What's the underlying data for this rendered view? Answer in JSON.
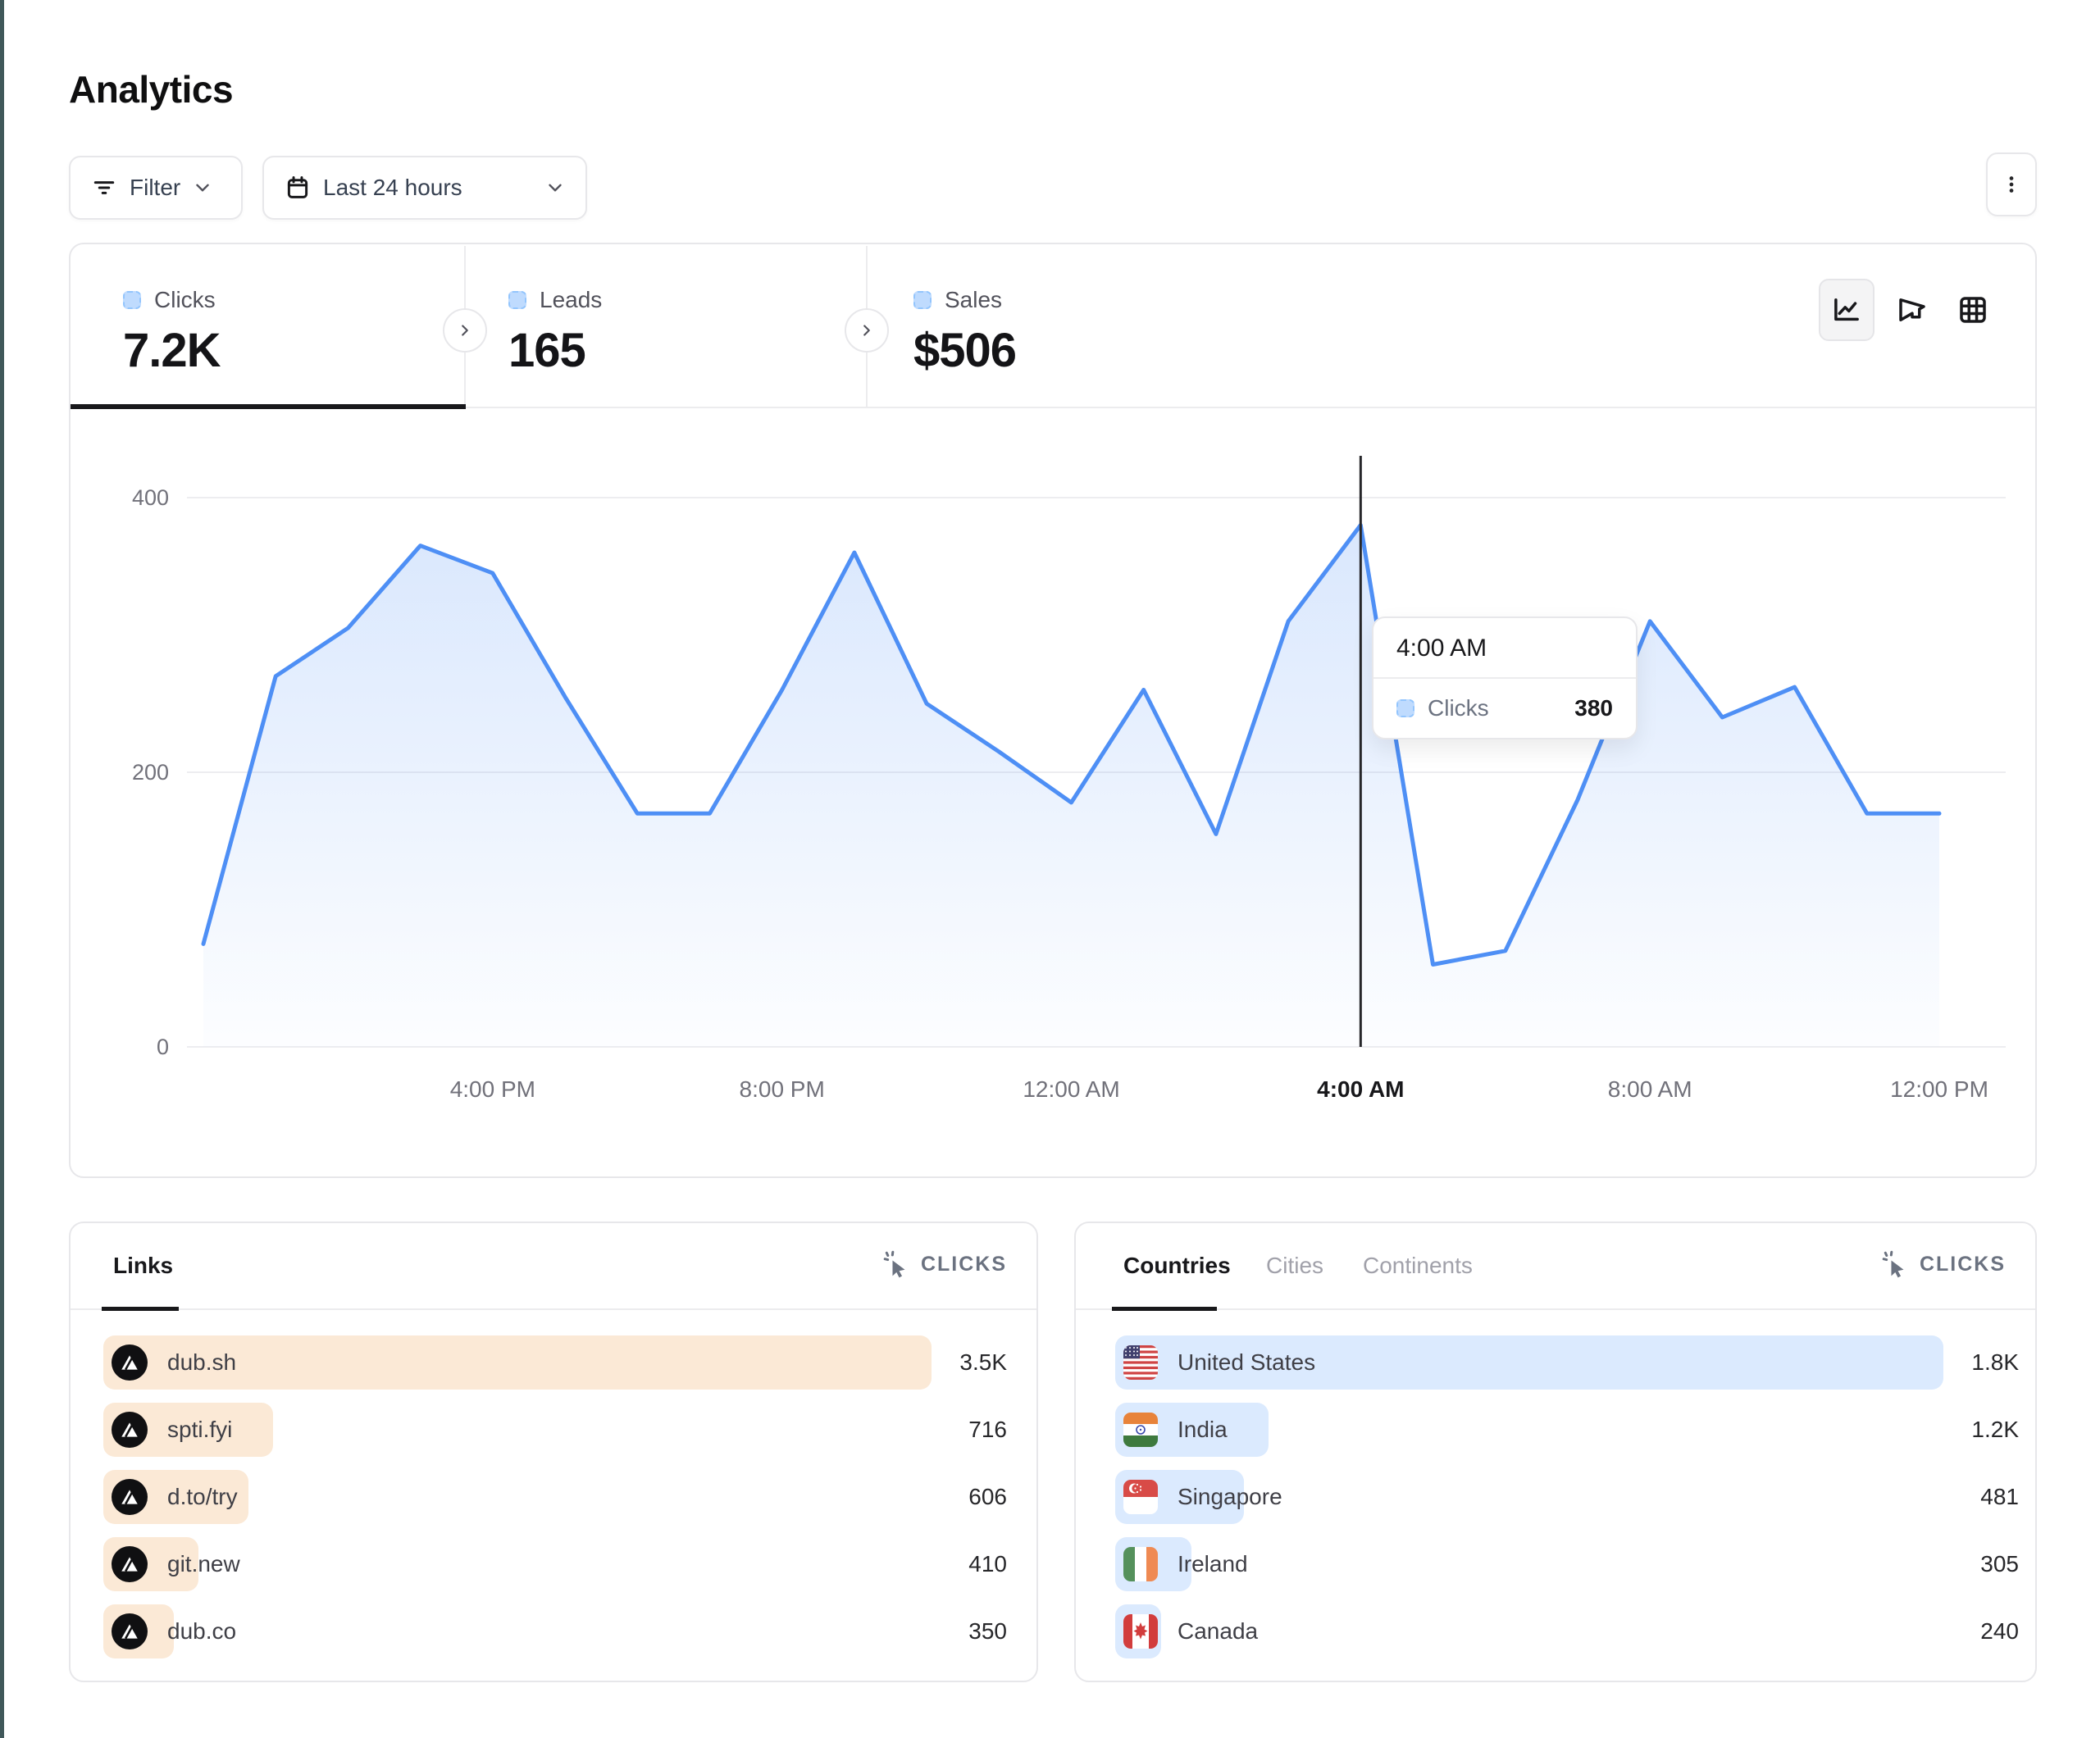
{
  "page": {
    "title": "Analytics"
  },
  "toolbar": {
    "filter_label": "Filter",
    "date_label": "Last 24 hours"
  },
  "kebab_menu_icon": "three-dots-vertical",
  "stats": [
    {
      "label": "Clicks",
      "value": "7.2K",
      "active": true
    },
    {
      "label": "Leads",
      "value": "165",
      "active": false
    },
    {
      "label": "Sales",
      "value": "$506",
      "active": false
    }
  ],
  "view_modes": [
    {
      "icon": "line-chart-icon",
      "active": true
    },
    {
      "icon": "funnel-icon",
      "active": false
    },
    {
      "icon": "table-grid-icon",
      "active": false
    }
  ],
  "chart_data": {
    "type": "area",
    "series_name": "Clicks",
    "x": [
      "12:00 PM",
      "1:00 PM",
      "2:00 PM",
      "3:00 PM",
      "4:00 PM",
      "5:00 PM",
      "6:00 PM",
      "7:00 PM",
      "8:00 PM",
      "9:00 PM",
      "10:00 PM",
      "11:00 PM",
      "12:00 AM",
      "1:00 AM",
      "2:00 AM",
      "3:00 AM",
      "4:00 AM",
      "5:00 AM",
      "6:00 AM",
      "7:00 AM",
      "8:00 AM",
      "9:00 AM",
      "10:00 AM",
      "11:00 AM",
      "12:00 PM"
    ],
    "values": [
      75,
      270,
      305,
      365,
      345,
      255,
      170,
      170,
      260,
      360,
      250,
      215,
      178,
      260,
      155,
      310,
      380,
      60,
      70,
      180,
      310,
      240,
      262,
      170,
      170
    ],
    "ylim": [
      0,
      400
    ],
    "yticks": [
      0,
      200,
      400
    ],
    "x_ticks": [
      {
        "index": 4,
        "label": "4:00 PM"
      },
      {
        "index": 8,
        "label": "8:00 PM"
      },
      {
        "index": 12,
        "label": "12:00 AM"
      },
      {
        "index": 16,
        "label": "4:00 AM",
        "hovered": true
      },
      {
        "index": 20,
        "label": "8:00 AM"
      },
      {
        "index": 24,
        "label": "12:00 PM"
      }
    ],
    "grid": true,
    "legend_position": "none",
    "hover": {
      "index": 16,
      "time_label": "4:00 AM",
      "series": "Clicks",
      "value": "380"
    },
    "colors": {
      "line": "#4e8ff5",
      "fill_top": "rgba(120,170,248,0.28)",
      "fill_bottom": "rgba(120,170,248,0.02)",
      "hover_line": "#27272a"
    }
  },
  "links_panel": {
    "tab_label": "Links",
    "metric_label": "CLICKS",
    "metric_icon": "cursor-click",
    "bar_color": "#fbe9d6",
    "rows": [
      {
        "label": "dub.sh",
        "value": "3.5K",
        "bar_pct": 100
      },
      {
        "label": "spti.fyi",
        "value": "716",
        "bar_pct": 20.5
      },
      {
        "label": "d.to/try",
        "value": "606",
        "bar_pct": 17.5
      },
      {
        "label": "git.new",
        "value": "410",
        "bar_pct": 11.5
      },
      {
        "label": "dub.co",
        "value": "350",
        "bar_pct": 8.5
      }
    ]
  },
  "geo_panel": {
    "tabs": [
      {
        "label": "Countries",
        "active": true
      },
      {
        "label": "Cities",
        "active": false
      },
      {
        "label": "Continents",
        "active": false
      }
    ],
    "metric_label": "CLICKS",
    "metric_icon": "cursor-click",
    "bar_color": "#dbeafe",
    "rows": [
      {
        "label": "United States",
        "value": "1.8K",
        "bar_pct": 100,
        "flag": "us"
      },
      {
        "label": "India",
        "value": "1.2K",
        "bar_pct": 18.5,
        "flag": "in"
      },
      {
        "label": "Singapore",
        "value": "481",
        "bar_pct": 15.5,
        "flag": "sg"
      },
      {
        "label": "Ireland",
        "value": "305",
        "bar_pct": 9.2,
        "flag": "ie"
      },
      {
        "label": "Canada",
        "value": "240",
        "bar_pct": 5.5,
        "flag": "ca"
      }
    ]
  }
}
